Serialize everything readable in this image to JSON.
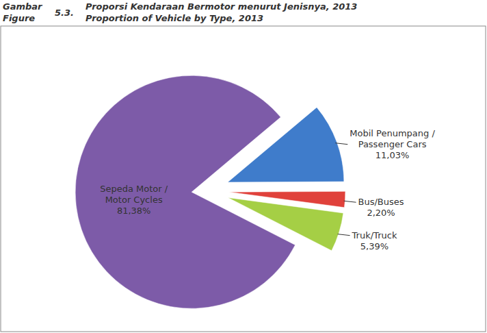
{
  "chart_data": {
    "type": "pie",
    "title": "Proporsi Kendaraan Bermotor menurut Jenisnya, 2013",
    "subtitle": "Proportion of Vehicle by Type, 2013",
    "annotations": [
      "Gambar",
      "Figure",
      "5.3."
    ],
    "categories": [
      "Mobil Penumpang / Passenger Cars",
      "Bus/Buses",
      "Truk/Truck",
      "Sepeda Motor / Motor Cycles"
    ],
    "values": [
      11.03,
      2.2,
      5.39,
      81.38
    ],
    "value_labels": [
      "11,03%",
      "2,20%",
      "5,39%",
      "81,38%"
    ],
    "colors": [
      "#3f7ccb",
      "#e0413b",
      "#a5cf45",
      "#7d5ba8"
    ],
    "data_labels": true
  }
}
